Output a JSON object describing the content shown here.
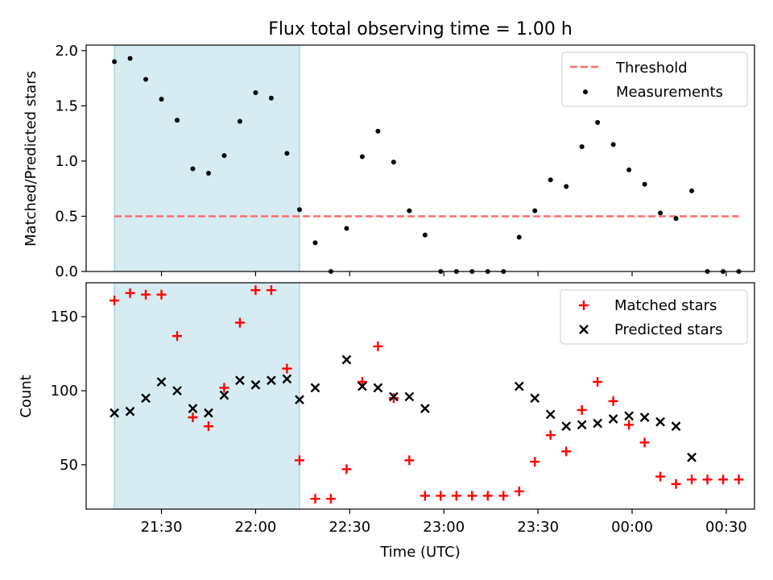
{
  "chart_data": [
    {
      "type": "scatter",
      "title": "Flux total observing time = 1.00 h",
      "xlabel": "",
      "ylabel": "Matched/Predicted stars",
      "ylim": [
        0,
        2.05
      ],
      "yticks": [
        "0.0",
        "0.5",
        "1.0",
        "1.5",
        "2.0"
      ],
      "xlim": [
        "21:06",
        "00:39"
      ],
      "highlight_span": [
        "21:15",
        "22:14"
      ],
      "highlight_color": "#add8e6",
      "grid": false,
      "legend_position": "top-right",
      "series": [
        {
          "name": "Threshold",
          "style": "dashed-line",
          "color": "#ff6b6b",
          "x": [
            "21:15",
            "00:34"
          ],
          "y": [
            0.5,
            0.5
          ]
        },
        {
          "name": "Measurements",
          "style": "dot",
          "color": "#000000",
          "x": [
            "21:15",
            "21:20",
            "21:25",
            "21:30",
            "21:35",
            "21:40",
            "21:45",
            "21:50",
            "21:55",
            "22:00",
            "22:05",
            "22:10",
            "22:14",
            "22:19",
            "22:24",
            "22:29",
            "22:34",
            "22:39",
            "22:44",
            "22:49",
            "22:54",
            "22:59",
            "23:04",
            "23:09",
            "23:14",
            "23:19",
            "23:24",
            "23:29",
            "23:34",
            "23:39",
            "23:44",
            "23:49",
            "23:54",
            "23:59",
            "00:04",
            "00:09",
            "00:14",
            "00:19",
            "00:24",
            "00:29",
            "00:34"
          ],
          "y": [
            1.9,
            1.93,
            1.74,
            1.56,
            1.37,
            0.93,
            0.89,
            1.05,
            1.36,
            1.62,
            1.57,
            1.07,
            0.56,
            0.26,
            0.0,
            0.39,
            1.04,
            1.27,
            0.99,
            0.55,
            0.33,
            0.0,
            0.0,
            0.0,
            0.0,
            0.0,
            0.31,
            0.55,
            0.83,
            0.77,
            1.13,
            1.35,
            1.15,
            0.92,
            0.79,
            0.53,
            0.48,
            0.73,
            0.0,
            0.0,
            0.0
          ]
        }
      ]
    },
    {
      "type": "scatter",
      "title": "",
      "xlabel": "Time (UTC)",
      "ylabel": "Count",
      "ylim": [
        20,
        173
      ],
      "yticks": [
        "50",
        "100",
        "150"
      ],
      "xlim": [
        "21:06",
        "00:39"
      ],
      "xticks": [
        "21:30",
        "22:00",
        "22:30",
        "23:00",
        "23:30",
        "00:00",
        "00:30"
      ],
      "highlight_span": [
        "21:15",
        "22:14"
      ],
      "highlight_color": "#add8e6",
      "grid": false,
      "legend_position": "top-right",
      "series": [
        {
          "name": "Matched stars",
          "marker": "plus",
          "color": "#ff0000",
          "x": [
            "21:15",
            "21:20",
            "21:25",
            "21:30",
            "21:35",
            "21:40",
            "21:45",
            "21:50",
            "21:55",
            "22:00",
            "22:05",
            "22:10",
            "22:14",
            "22:19",
            "22:24",
            "22:29",
            "22:34",
            "22:39",
            "22:44",
            "22:49",
            "22:54",
            "22:59",
            "23:04",
            "23:09",
            "23:14",
            "23:19",
            "23:24",
            "23:29",
            "23:34",
            "23:39",
            "23:44",
            "23:49",
            "23:54",
            "23:59",
            "00:04",
            "00:09",
            "00:14",
            "00:19",
            "00:24",
            "00:29",
            "00:34"
          ],
          "y": [
            161,
            166,
            165,
            165,
            137,
            82,
            76,
            102,
            146,
            168,
            168,
            115,
            53,
            27,
            27,
            47,
            106,
            130,
            95,
            53,
            29,
            29,
            29,
            29,
            29,
            29,
            32,
            52,
            70,
            59,
            87,
            106,
            93,
            77,
            65,
            42,
            37,
            40,
            40,
            40,
            40
          ]
        },
        {
          "name": "Predicted stars",
          "marker": "x",
          "color": "#000000",
          "x": [
            "21:15",
            "21:20",
            "21:25",
            "21:30",
            "21:35",
            "21:40",
            "21:45",
            "21:50",
            "21:55",
            "22:00",
            "22:05",
            "22:10",
            "22:14",
            "22:19",
            "22:29",
            "22:34",
            "22:39",
            "22:44",
            "22:49",
            "22:54",
            "23:24",
            "23:29",
            "23:34",
            "23:39",
            "23:44",
            "23:49",
            "23:54",
            "23:59",
            "00:04",
            "00:09",
            "00:14",
            "00:19"
          ],
          "y": [
            85,
            86,
            95,
            106,
            100,
            88,
            85,
            97,
            107,
            104,
            107,
            108,
            94,
            102,
            121,
            103,
            102,
            96,
            96,
            88,
            103,
            95,
            84,
            76,
            77,
            78,
            81,
            83,
            82,
            79,
            76,
            55
          ]
        }
      ]
    }
  ]
}
